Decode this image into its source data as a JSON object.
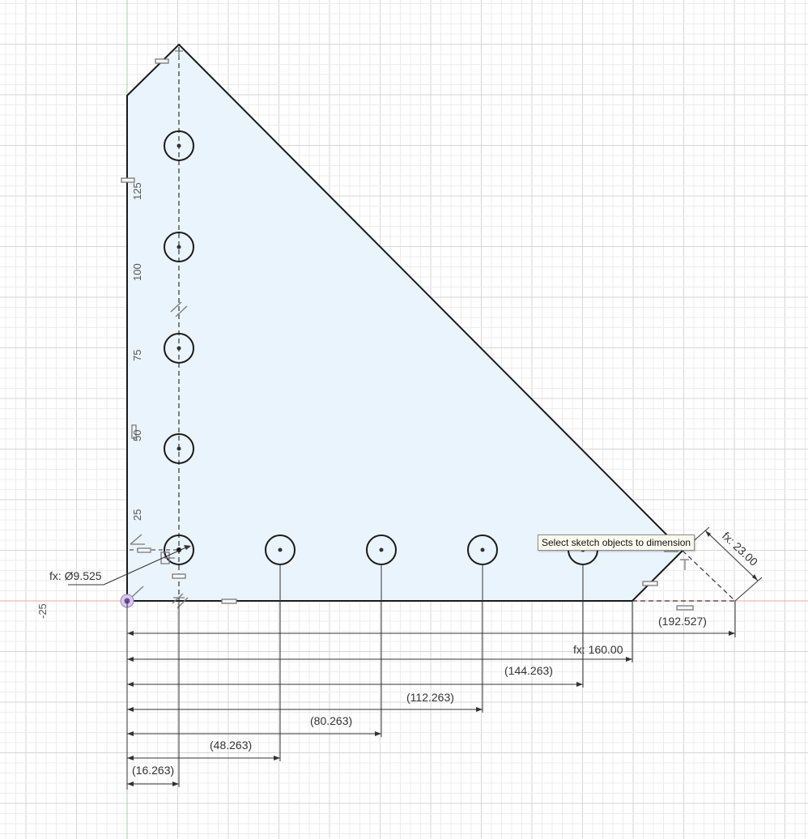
{
  "tooltip": {
    "text": "Select sketch objects to dimension"
  },
  "axis": {
    "y_ticks": [
      "125",
      "100",
      "75",
      "50",
      "25"
    ],
    "x_ticks": [
      "-25"
    ]
  },
  "dimensions": {
    "hole_diameter": "fx: Ø9.525",
    "chamfer": "fx: 23.00",
    "overall_width": "(192.527)",
    "base_length": "fx: 160.00",
    "hole_offsets": [
      "(16.263)",
      "(48.263)",
      "(80.263)",
      "(112.263)",
      "(144.263)"
    ]
  },
  "colors": {
    "grid_minor": "#ececec",
    "grid_major": "#d6d6d6",
    "profile_fill": "#eaf4fd",
    "outline": "#1a1a1a",
    "axis_x": "#f2a6a6",
    "axis_y": "#9ed89e",
    "dimension_line": "#333333",
    "constraint": "#7a7a7a"
  },
  "icons": [
    "origin-icon",
    "coincident-constraint-icon",
    "horizontal-constraint-icon",
    "vertical-constraint-icon",
    "parallel-constraint-icon",
    "equal-constraint-icon",
    "fix-constraint-icon"
  ]
}
